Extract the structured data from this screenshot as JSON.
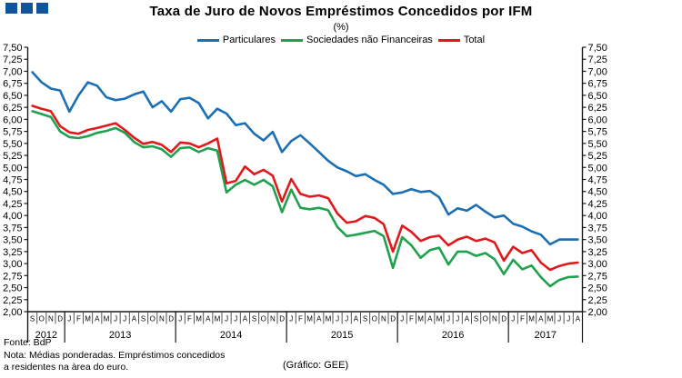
{
  "header": {
    "title": "Taxa de Juro de Novos Empréstimos Concedidos por IFM",
    "subtitle": "(%)"
  },
  "logo": {
    "color": "#10549b",
    "square_count": 3
  },
  "footer": {
    "source": "Fonte: BdP",
    "note_line1": "Nota: Médias ponderadas. Empréstimos concedidos",
    "note_line2": "a residentes na àrea do euro.",
    "credit": "(Gráfico: GEE)"
  },
  "chart_data": {
    "type": "line",
    "title": "Taxa de Juro de Novos Empréstimos Concedidos por IFM",
    "subtitle": "(%)",
    "ylim": [
      2.0,
      7.5
    ],
    "y_tick_step": 0.25,
    "y_ticks": [
      "7,50",
      "7,25",
      "7,00",
      "6,75",
      "6,50",
      "6,25",
      "6,00",
      "5,75",
      "5,50",
      "5,25",
      "5,00",
      "4,75",
      "4,50",
      "4,25",
      "4,00",
      "3,75",
      "3,50",
      "3,25",
      "3,00",
      "2,75",
      "2,50",
      "2,25",
      "2,00"
    ],
    "grid": false,
    "legend_position": "top",
    "x_months": [
      "S",
      "O",
      "N",
      "D",
      "J",
      "F",
      "M",
      "A",
      "M",
      "J",
      "J",
      "A",
      "S",
      "O",
      "N",
      "D",
      "J",
      "F",
      "M",
      "A",
      "M",
      "J",
      "J",
      "A",
      "S",
      "O",
      "N",
      "D",
      "J",
      "F",
      "M",
      "A",
      "M",
      "J",
      "J",
      "A",
      "S",
      "O",
      "N",
      "D",
      "J",
      "F",
      "M",
      "A",
      "M",
      "J",
      "J",
      "A",
      "S",
      "O",
      "N",
      "D",
      "J",
      "F",
      "M",
      "A",
      "M",
      "J",
      "J",
      "A"
    ],
    "years": [
      {
        "label": "2012",
        "months": 4
      },
      {
        "label": "2013",
        "months": 12
      },
      {
        "label": "2014",
        "months": 12
      },
      {
        "label": "2015",
        "months": 12
      },
      {
        "label": "2016",
        "months": 12
      },
      {
        "label": "2017",
        "months": 8
      }
    ],
    "series": [
      {
        "name": "Particulares",
        "color": "#1b6fb5",
        "values": [
          6.98,
          6.77,
          6.64,
          6.6,
          6.16,
          6.5,
          6.77,
          6.7,
          6.46,
          6.4,
          6.43,
          6.52,
          6.58,
          6.25,
          6.38,
          6.16,
          6.42,
          6.45,
          6.34,
          6.02,
          6.22,
          6.12,
          5.88,
          5.92,
          5.7,
          5.56,
          5.74,
          5.32,
          5.55,
          5.67,
          5.5,
          5.32,
          5.14,
          5.0,
          4.92,
          4.82,
          4.86,
          4.74,
          4.64,
          4.45,
          4.48,
          4.55,
          4.49,
          4.51,
          4.38,
          4.02,
          4.15,
          4.1,
          4.22,
          4.08,
          3.96,
          4.0,
          3.83,
          3.77,
          3.67,
          3.6,
          3.4,
          3.5,
          3.5,
          3.5
        ]
      },
      {
        "name": "Sociedades não Financeiras",
        "color": "#1fa14e",
        "values": [
          6.17,
          6.11,
          6.05,
          5.75,
          5.63,
          5.61,
          5.65,
          5.72,
          5.76,
          5.82,
          5.72,
          5.53,
          5.42,
          5.44,
          5.38,
          5.22,
          5.4,
          5.42,
          5.32,
          5.4,
          5.35,
          4.48,
          4.64,
          4.74,
          4.64,
          4.74,
          4.61,
          4.07,
          4.54,
          4.16,
          4.13,
          4.16,
          4.11,
          3.76,
          3.57,
          3.6,
          3.64,
          3.68,
          3.57,
          2.91,
          3.55,
          3.38,
          3.12,
          3.28,
          3.33,
          2.98,
          3.25,
          3.25,
          3.16,
          3.22,
          3.09,
          2.78,
          3.08,
          2.88,
          2.96,
          2.72,
          2.53,
          2.66,
          2.72,
          2.73
        ]
      },
      {
        "name": "Total",
        "color": "#e2191c",
        "values": [
          6.28,
          6.22,
          6.17,
          5.86,
          5.73,
          5.7,
          5.78,
          5.82,
          5.87,
          5.92,
          5.78,
          5.62,
          5.49,
          5.53,
          5.47,
          5.32,
          5.52,
          5.5,
          5.42,
          5.5,
          5.6,
          4.67,
          4.72,
          5.02,
          4.86,
          4.95,
          4.83,
          4.29,
          4.76,
          4.45,
          4.39,
          4.42,
          4.36,
          4.04,
          3.85,
          3.88,
          3.99,
          3.95,
          3.82,
          3.25,
          3.79,
          3.66,
          3.47,
          3.55,
          3.58,
          3.38,
          3.5,
          3.56,
          3.47,
          3.52,
          3.44,
          3.06,
          3.35,
          3.22,
          3.28,
          3.02,
          2.87,
          2.95,
          3.0,
          3.02
        ]
      }
    ]
  }
}
